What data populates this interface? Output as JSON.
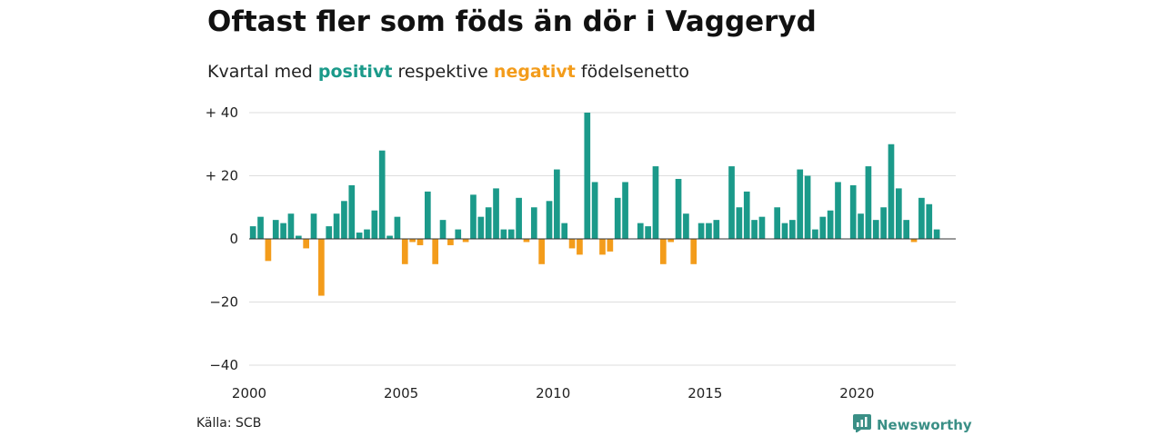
{
  "title": "Oftast fler som föds än dör i Vaggeryd",
  "subtitle": {
    "prefix": "Kvartal med",
    "positive_word": "positivt",
    "middle": "respektive",
    "negative_word": "negativt",
    "suffix": "födelsenetto"
  },
  "source": "Källa: SCB",
  "brand": {
    "name": "Newsworthy",
    "icon": "newsworthy-logo-icon"
  },
  "colors": {
    "positive": "#1b9a8a",
    "negative": "#f39c1b",
    "grid": "#dddddd",
    "zero": "#333333"
  },
  "chart_data": {
    "type": "bar",
    "title": "Oftast fler som föds än dör i Vaggeryd",
    "xlabel": "",
    "ylabel": "",
    "ylim": [
      -40,
      40
    ],
    "xlim": [
      2000,
      2023.25
    ],
    "yticks": [
      {
        "value": 40,
        "label": "+ 40"
      },
      {
        "value": 20,
        "label": "+ 20"
      },
      {
        "value": 0,
        "label": "0"
      },
      {
        "value": -20,
        "label": "−20"
      },
      {
        "value": -40,
        "label": "−40"
      }
    ],
    "xticks": [
      {
        "value": 2000,
        "label": "2000"
      },
      {
        "value": 2005,
        "label": "2005"
      },
      {
        "value": 2010,
        "label": "2010"
      },
      {
        "value": 2015,
        "label": "2015"
      },
      {
        "value": 2020,
        "label": "2020"
      }
    ],
    "grid": true,
    "start_year": 2000,
    "periods_per_year": 4,
    "values": [
      4,
      7,
      -7,
      6,
      5,
      8,
      1,
      -3,
      8,
      -18,
      4,
      8,
      12,
      17,
      2,
      3,
      9,
      28,
      1,
      7,
      -8,
      -1,
      -2,
      15,
      -8,
      6,
      -2,
      3,
      -1,
      14,
      7,
      10,
      16,
      3,
      3,
      13,
      -1,
      10,
      -8,
      12,
      22,
      5,
      -3,
      -5,
      40,
      18,
      -5,
      -4,
      13,
      18,
      0,
      5,
      4,
      23,
      -8,
      -1,
      19,
      8,
      -8,
      5,
      5,
      6,
      0,
      23,
      10,
      15,
      6,
      7,
      0,
      10,
      5,
      6,
      22,
      20,
      3,
      7,
      9,
      18,
      0,
      17,
      8,
      23,
      6,
      10,
      30,
      16,
      6,
      -1,
      13,
      11,
      3
    ]
  }
}
